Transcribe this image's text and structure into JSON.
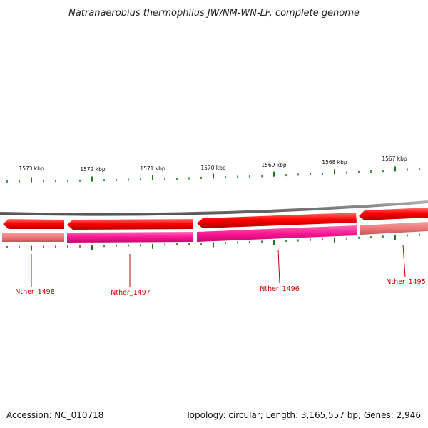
{
  "title": "Natranaerobius thermophilus JW/NM-WN-LF, complete genome",
  "scale_labels": [
    "1573 kbp",
    "1572 kbp",
    "1571 kbp",
    "1570 kbp",
    "1569 kbp",
    "1568 kbp",
    "1567 kbp"
  ],
  "genes": [
    {
      "label": "Nther_1498",
      "strand": "reverse",
      "feature_color": "#ff0000",
      "cds_color": "#f08080"
    },
    {
      "label": "Nther_1497",
      "strand": "reverse",
      "feature_color": "#ff0000",
      "cds_color": "#ff1493"
    },
    {
      "label": "Nther_1496",
      "strand": "reverse",
      "feature_color": "#ff0000",
      "cds_color": "#ff1493"
    },
    {
      "label": "Nther_1495",
      "strand": "reverse",
      "feature_color": "#ff0000",
      "cds_color": "#f08080"
    }
  ],
  "footer": {
    "accession": "Accession: NC_010718",
    "summary": "Topology: circular; Length: 3,165,557 bp; Genes: 2,946"
  },
  "colors": {
    "backbone": "#808080",
    "tick": "#1a7a1a",
    "label": "#cc0000"
  }
}
